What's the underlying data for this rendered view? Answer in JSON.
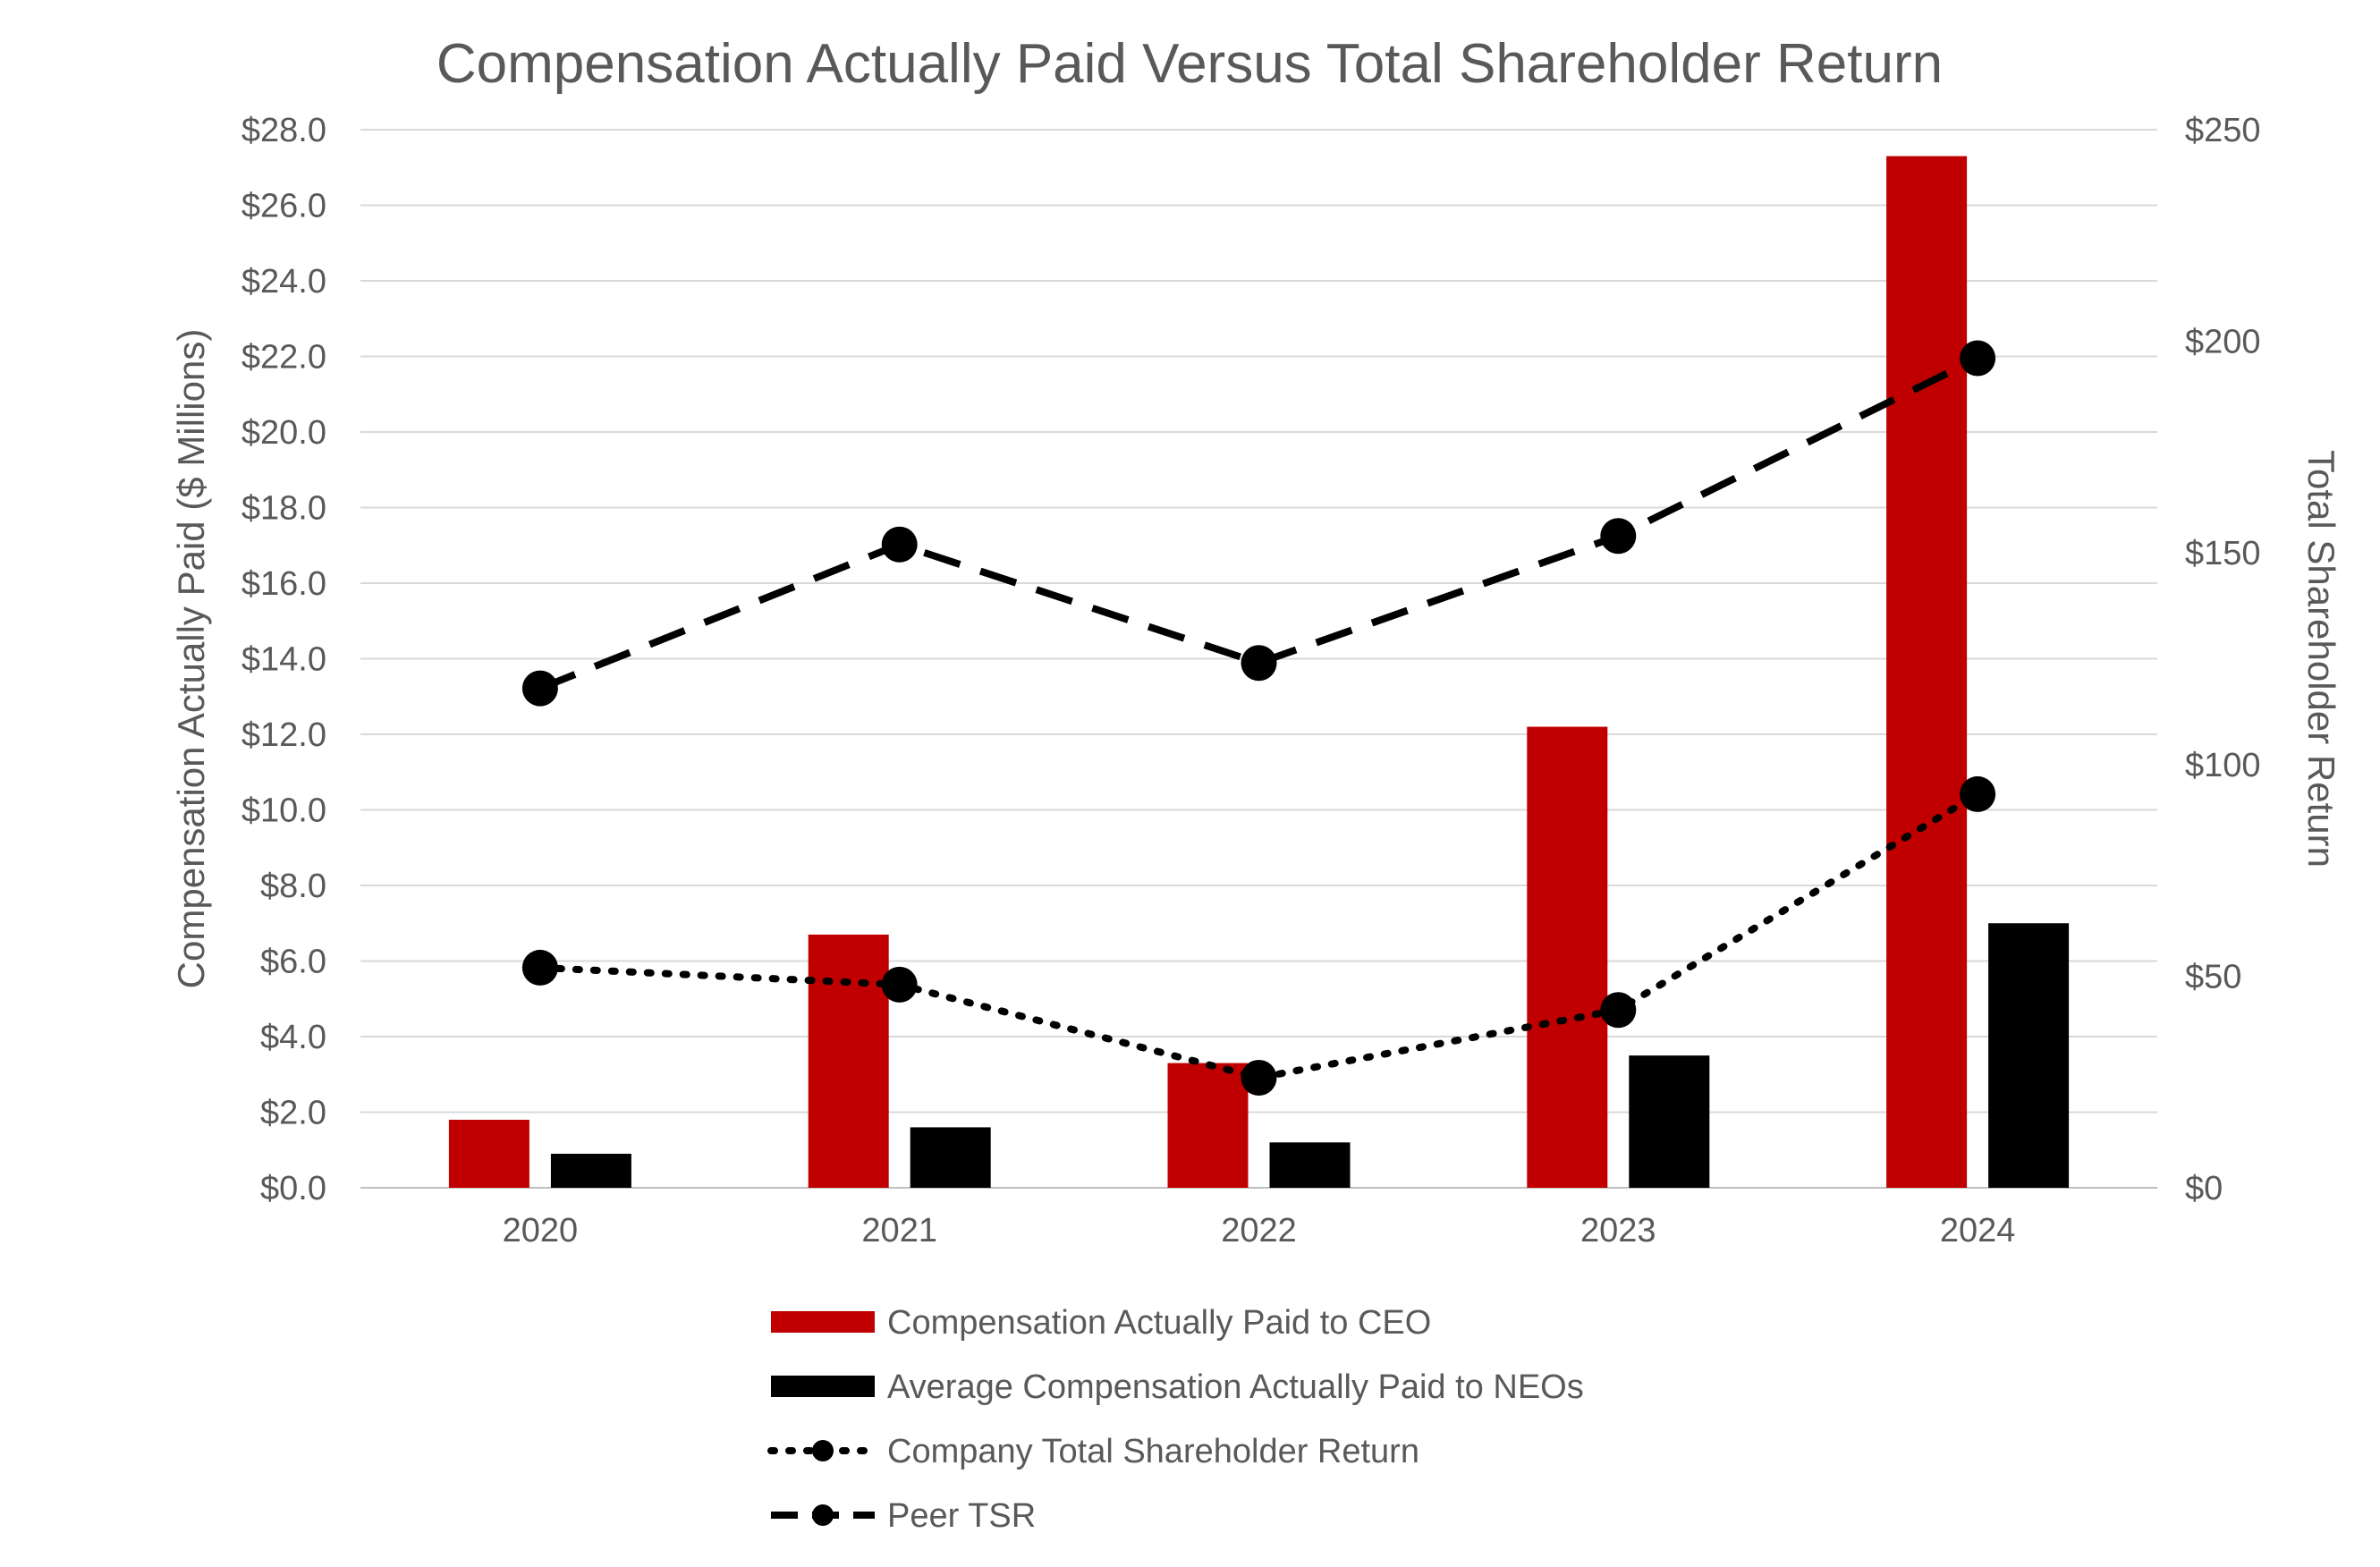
{
  "chart_data": {
    "type": "bar",
    "title": "Compensation Actually Paid Versus Total Shareholder Return",
    "categories": [
      "2020",
      "2021",
      "2022",
      "2023",
      "2024"
    ],
    "y_left": {
      "label": "Compensation Actually Paid ($ Millions)",
      "min": 0,
      "max": 28,
      "step": 2,
      "tick_labels": [
        "$0.0",
        "$2.0",
        "$4.0",
        "$6.0",
        "$8.0",
        "$10.0",
        "$12.0",
        "$14.0",
        "$16.0",
        "$18.0",
        "$20.0",
        "$22.0",
        "$24.0",
        "$26.0",
        "$28.0"
      ]
    },
    "y_right": {
      "label": "Total Shareholder Return",
      "min": 0,
      "max": 250,
      "step": 50,
      "tick_labels": [
        "$0",
        "$50",
        "$100",
        "$150",
        "$200",
        "$250"
      ]
    },
    "grid": true,
    "legend_position": "bottom",
    "series": [
      {
        "name": "Compensation Actually Paid to CEO",
        "kind": "bar",
        "axis": "left",
        "color": "#C00000",
        "values": [
          1.8,
          6.7,
          3.3,
          12.2,
          27.3
        ]
      },
      {
        "name": "Average Compensation Actually Paid to NEOs",
        "kind": "bar",
        "axis": "left",
        "color": "#000000",
        "values": [
          0.9,
          1.6,
          1.2,
          3.5,
          7.0
        ]
      },
      {
        "name": "Company Total Shareholder Return",
        "kind": "line",
        "line_style": "dotted",
        "axis": "right",
        "color": "#000000",
        "values": [
          52,
          48,
          26,
          42,
          93
        ]
      },
      {
        "name": "Peer TSR",
        "kind": "line",
        "line_style": "dashed",
        "axis": "right",
        "color": "#000000",
        "values": [
          118,
          152,
          124,
          154,
          196
        ]
      }
    ]
  }
}
